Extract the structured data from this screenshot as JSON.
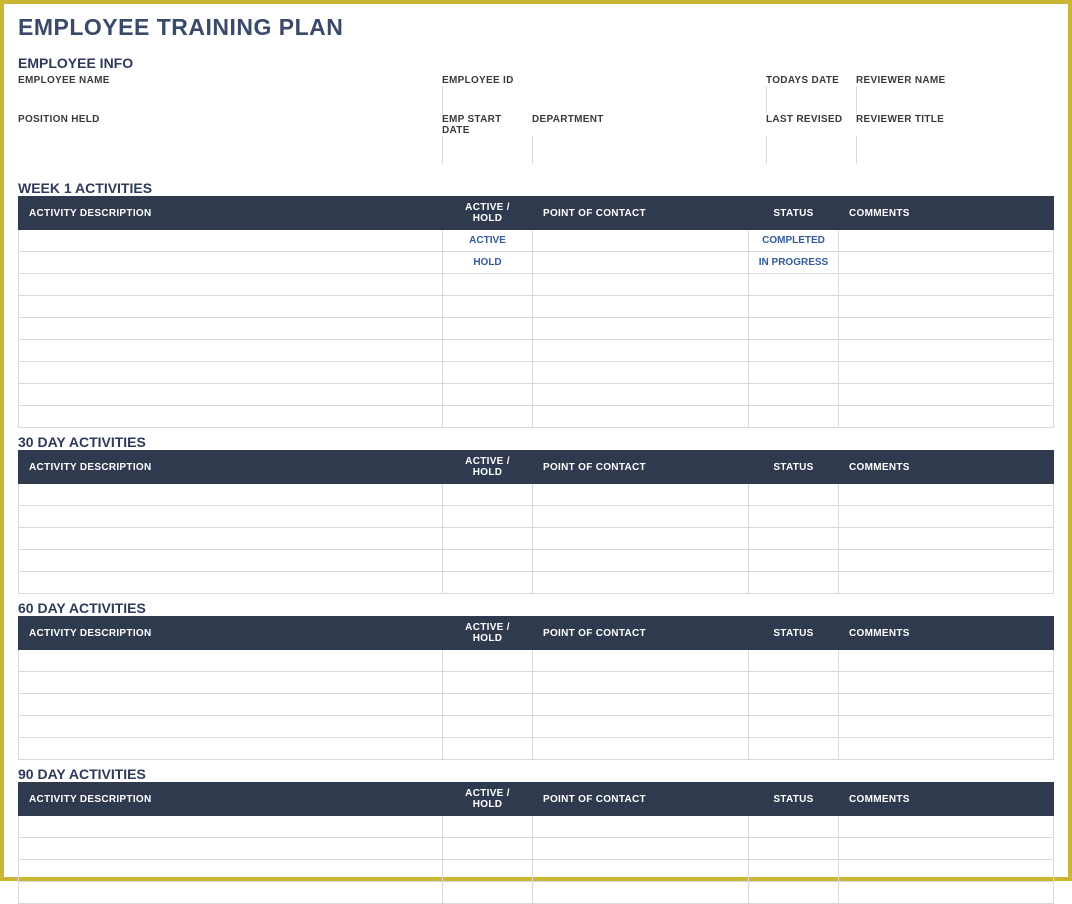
{
  "colors": {
    "frame_border": "#c9b634",
    "title_color": "#3a4a6a",
    "section_heading_color": "#2e3a5a",
    "table_header_bg": "#303a4f",
    "table_header_text": "#ffffff",
    "cell_border": "#d9d9d9",
    "value_text": "#335a9a"
  },
  "title": "EMPLOYEE TRAINING PLAN",
  "employee_info": {
    "heading": "EMPLOYEE INFO",
    "row1": {
      "c1_label": "EMPLOYEE NAME",
      "c2_label": "EMPLOYEE ID",
      "c3_label": "TODAYS DATE",
      "c4_label": "REVIEWER NAME"
    },
    "row2": {
      "c1_label": "POSITION HELD",
      "c2_label": "EMP START DATE",
      "c3_label": "DEPARTMENT",
      "c4_label": "LAST REVISED",
      "c5_label": "REVIEWER TITLE"
    }
  },
  "table_headers": {
    "activity": "ACTIVITY DESCRIPTION",
    "active_hold": "ACTIVE / HOLD",
    "poc": "POINT OF CONTACT",
    "status": "STATUS",
    "comments": "COMMENTS"
  },
  "sections": {
    "week1": {
      "heading": "WEEK 1 ACTIVITIES",
      "rows": [
        {
          "desc": "",
          "active": "ACTIVE",
          "poc": "",
          "status": "COMPLETED",
          "comments": ""
        },
        {
          "desc": "",
          "active": "HOLD",
          "poc": "",
          "status": "IN PROGRESS",
          "comments": ""
        },
        {
          "desc": "",
          "active": "",
          "poc": "",
          "status": "",
          "comments": ""
        },
        {
          "desc": "",
          "active": "",
          "poc": "",
          "status": "",
          "comments": ""
        },
        {
          "desc": "",
          "active": "",
          "poc": "",
          "status": "",
          "comments": ""
        },
        {
          "desc": "",
          "active": "",
          "poc": "",
          "status": "",
          "comments": ""
        },
        {
          "desc": "",
          "active": "",
          "poc": "",
          "status": "",
          "comments": ""
        },
        {
          "desc": "",
          "active": "",
          "poc": "",
          "status": "",
          "comments": ""
        },
        {
          "desc": "",
          "active": "",
          "poc": "",
          "status": "",
          "comments": ""
        }
      ]
    },
    "d30": {
      "heading": "30 DAY ACTIVITIES",
      "rows": [
        {
          "desc": "",
          "active": "",
          "poc": "",
          "status": "",
          "comments": ""
        },
        {
          "desc": "",
          "active": "",
          "poc": "",
          "status": "",
          "comments": ""
        },
        {
          "desc": "",
          "active": "",
          "poc": "",
          "status": "",
          "comments": ""
        },
        {
          "desc": "",
          "active": "",
          "poc": "",
          "status": "",
          "comments": ""
        },
        {
          "desc": "",
          "active": "",
          "poc": "",
          "status": "",
          "comments": ""
        }
      ]
    },
    "d60": {
      "heading": "60 DAY ACTIVITIES",
      "rows": [
        {
          "desc": "",
          "active": "",
          "poc": "",
          "status": "",
          "comments": ""
        },
        {
          "desc": "",
          "active": "",
          "poc": "",
          "status": "",
          "comments": ""
        },
        {
          "desc": "",
          "active": "",
          "poc": "",
          "status": "",
          "comments": ""
        },
        {
          "desc": "",
          "active": "",
          "poc": "",
          "status": "",
          "comments": ""
        },
        {
          "desc": "",
          "active": "",
          "poc": "",
          "status": "",
          "comments": ""
        }
      ]
    },
    "d90": {
      "heading": "90 DAY ACTIVITIES",
      "rows": [
        {
          "desc": "",
          "active": "",
          "poc": "",
          "status": "",
          "comments": ""
        },
        {
          "desc": "",
          "active": "",
          "poc": "",
          "status": "",
          "comments": ""
        },
        {
          "desc": "",
          "active": "",
          "poc": "",
          "status": "",
          "comments": ""
        },
        {
          "desc": "",
          "active": "",
          "poc": "",
          "status": "",
          "comments": ""
        }
      ]
    }
  }
}
